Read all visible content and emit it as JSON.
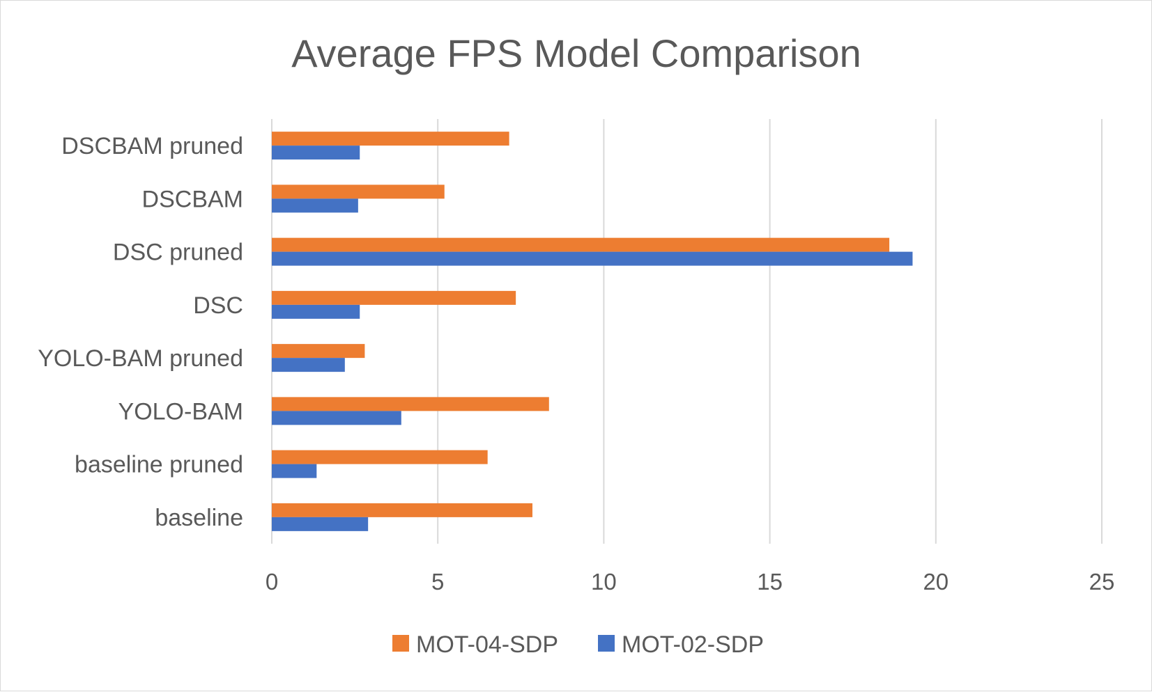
{
  "chart_data": {
    "type": "bar",
    "orientation": "horizontal",
    "title": "Average FPS Model Comparison",
    "xlabel": "",
    "ylabel": "",
    "categories": [
      "baseline",
      "baseline pruned",
      "YOLO-BAM",
      "YOLO-BAM pruned",
      "DSC",
      "DSC pruned",
      "DSCBAM",
      "DSCBAM pruned"
    ],
    "series": [
      {
        "name": "MOT-04-SDP",
        "color": "#ED7D31",
        "values": [
          7.85,
          6.5,
          8.35,
          2.8,
          7.35,
          18.6,
          5.2,
          7.15
        ]
      },
      {
        "name": "MOT-02-SDP",
        "color": "#4472C4",
        "values": [
          2.9,
          1.35,
          3.9,
          2.2,
          2.65,
          19.3,
          2.6,
          2.65
        ]
      }
    ],
    "xlim": [
      0,
      25
    ],
    "xticks": [
      "0",
      "5",
      "10",
      "15",
      "20",
      "25"
    ],
    "grid": true,
    "legend": "bottom"
  }
}
